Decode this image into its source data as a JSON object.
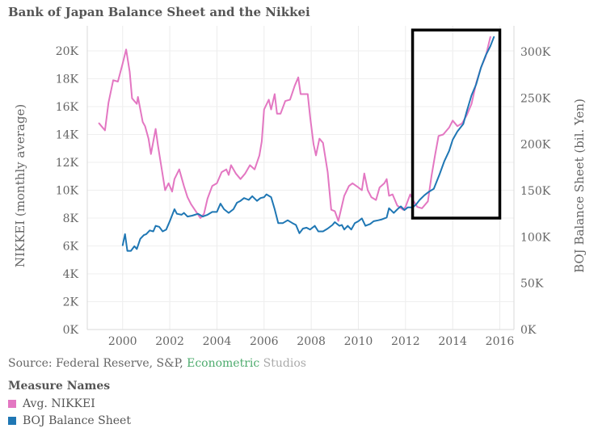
{
  "title": "Bank of Japan Balance Sheet and the Nikkei",
  "source": {
    "prefix": "Source: Federal Reserve, S&P, ",
    "part_green": "Econometric",
    "part_grey": " Studios"
  },
  "legend": {
    "title": "Measure Names",
    "items": [
      {
        "label": "Avg. NIKKEI",
        "color": "#e377c2"
      },
      {
        "label": "BOJ Balance Sheet",
        "color": "#1f77b4"
      }
    ]
  },
  "chart_data": {
    "type": "line",
    "title": "Bank of Japan Balance Sheet and the Nikkei",
    "ylabel_left": "NIKKEI (monthly average)",
    "ylabel_right": "BOJ Balance Sheet (bil. Yen)",
    "x_ticks": [
      "2000",
      "2002",
      "2004",
      "2006",
      "2008",
      "2010",
      "2012",
      "2014",
      "2016"
    ],
    "y_left_ticks": [
      {
        "v": 0,
        "label": "0K"
      },
      {
        "v": 2000,
        "label": "2K"
      },
      {
        "v": 4000,
        "label": "4K"
      },
      {
        "v": 6000,
        "label": "6K"
      },
      {
        "v": 8000,
        "label": "8K"
      },
      {
        "v": 10000,
        "label": "10K"
      },
      {
        "v": 12000,
        "label": "12K"
      },
      {
        "v": 14000,
        "label": "14K"
      },
      {
        "v": 16000,
        "label": "16K"
      },
      {
        "v": 18000,
        "label": "18K"
      },
      {
        "v": 20000,
        "label": "20K"
      }
    ],
    "y_right_ticks": [
      {
        "v": 0,
        "label": "0K"
      },
      {
        "v": 50000,
        "label": "50K"
      },
      {
        "v": 100000,
        "label": "100K"
      },
      {
        "v": 150000,
        "label": "150K"
      },
      {
        "v": 200000,
        "label": "200K"
      },
      {
        "v": 250000,
        "label": "250K"
      },
      {
        "v": 300000,
        "label": "300K"
      }
    ],
    "xlim": [
      1998.5,
      2016.6
    ],
    "ylim_left": [
      0,
      21800
    ],
    "ylim_right": [
      0,
      328000
    ],
    "highlight_box": {
      "x": [
        2012.3,
        2016.0
      ],
      "y_left": [
        8000,
        21500
      ]
    },
    "series": [
      {
        "name": "Avg. NIKKEI",
        "axis": "left",
        "color": "#e377c2",
        "points": [
          [
            1999.0,
            14800
          ],
          [
            1999.25,
            14300
          ],
          [
            1999.4,
            16300
          ],
          [
            1999.6,
            17900
          ],
          [
            1999.8,
            17800
          ],
          [
            2000.0,
            19100
          ],
          [
            2000.15,
            20100
          ],
          [
            2000.3,
            18500
          ],
          [
            2000.4,
            16600
          ],
          [
            2000.6,
            16200
          ],
          [
            2000.65,
            16700
          ],
          [
            2000.85,
            14900
          ],
          [
            2000.95,
            14600
          ],
          [
            2001.1,
            13700
          ],
          [
            2001.2,
            12600
          ],
          [
            2001.4,
            14400
          ],
          [
            2001.5,
            13200
          ],
          [
            2001.65,
            11600
          ],
          [
            2001.8,
            10000
          ],
          [
            2001.95,
            10500
          ],
          [
            2002.1,
            9900
          ],
          [
            2002.2,
            10800
          ],
          [
            2002.4,
            11500
          ],
          [
            2002.6,
            10300
          ],
          [
            2002.75,
            9500
          ],
          [
            2002.9,
            9000
          ],
          [
            2003.1,
            8500
          ],
          [
            2003.3,
            8000
          ],
          [
            2003.45,
            8300
          ],
          [
            2003.6,
            9400
          ],
          [
            2003.8,
            10300
          ],
          [
            2004.0,
            10500
          ],
          [
            2004.2,
            11300
          ],
          [
            2004.4,
            11500
          ],
          [
            2004.5,
            11100
          ],
          [
            2004.6,
            11800
          ],
          [
            2004.8,
            11200
          ],
          [
            2005.0,
            10800
          ],
          [
            2005.2,
            11200
          ],
          [
            2005.4,
            11800
          ],
          [
            2005.6,
            11500
          ],
          [
            2005.8,
            12500
          ],
          [
            2005.9,
            13500
          ],
          [
            2006.0,
            15800
          ],
          [
            2006.2,
            16500
          ],
          [
            2006.3,
            15800
          ],
          [
            2006.45,
            16900
          ],
          [
            2006.55,
            15500
          ],
          [
            2006.7,
            15500
          ],
          [
            2006.9,
            16400
          ],
          [
            2007.1,
            16500
          ],
          [
            2007.3,
            17500
          ],
          [
            2007.45,
            18100
          ],
          [
            2007.55,
            16900
          ],
          [
            2007.85,
            16900
          ],
          [
            2007.95,
            15300
          ],
          [
            2008.1,
            13300
          ],
          [
            2008.2,
            12500
          ],
          [
            2008.35,
            13700
          ],
          [
            2008.5,
            13400
          ],
          [
            2008.7,
            11300
          ],
          [
            2008.85,
            8600
          ],
          [
            2009.0,
            8500
          ],
          [
            2009.15,
            7800
          ],
          [
            2009.4,
            9600
          ],
          [
            2009.6,
            10300
          ],
          [
            2009.75,
            10500
          ],
          [
            2010.0,
            10200
          ],
          [
            2010.15,
            10000
          ],
          [
            2010.25,
            11200
          ],
          [
            2010.4,
            10000
          ],
          [
            2010.55,
            9500
          ],
          [
            2010.75,
            9300
          ],
          [
            2010.9,
            10200
          ],
          [
            2011.1,
            10500
          ],
          [
            2011.2,
            10800
          ],
          [
            2011.3,
            9600
          ],
          [
            2011.45,
            9700
          ],
          [
            2011.65,
            8900
          ],
          [
            2011.9,
            8600
          ],
          [
            2012.0,
            8800
          ],
          [
            2012.2,
            9700
          ],
          [
            2012.35,
            9200
          ],
          [
            2012.5,
            8800
          ],
          [
            2012.7,
            8700
          ],
          [
            2012.95,
            9200
          ],
          [
            2013.1,
            11000
          ],
          [
            2013.25,
            12500
          ],
          [
            2013.4,
            13900
          ],
          [
            2013.6,
            14000
          ],
          [
            2013.85,
            14500
          ],
          [
            2014.0,
            15000
          ],
          [
            2014.2,
            14600
          ],
          [
            2014.4,
            14800
          ],
          [
            2014.6,
            15400
          ],
          [
            2014.8,
            16200
          ],
          [
            2015.0,
            17700
          ],
          [
            2015.2,
            18800
          ],
          [
            2015.4,
            19600
          ],
          [
            2015.6,
            21000
          ]
        ]
      },
      {
        "name": "BOJ Balance Sheet",
        "axis": "right",
        "color": "#1f77b4",
        "points": [
          [
            2000.0,
            91000
          ],
          [
            2000.1,
            103000
          ],
          [
            2000.2,
            85000
          ],
          [
            2000.35,
            85000
          ],
          [
            2000.5,
            90000
          ],
          [
            2000.6,
            87000
          ],
          [
            2000.75,
            98000
          ],
          [
            2000.9,
            102000
          ],
          [
            2001.0,
            103000
          ],
          [
            2001.15,
            107000
          ],
          [
            2001.3,
            106000
          ],
          [
            2001.4,
            112000
          ],
          [
            2001.55,
            111000
          ],
          [
            2001.7,
            106000
          ],
          [
            2001.85,
            108000
          ],
          [
            2002.0,
            117000
          ],
          [
            2002.2,
            130000
          ],
          [
            2002.3,
            125000
          ],
          [
            2002.5,
            124000
          ],
          [
            2002.6,
            126000
          ],
          [
            2002.75,
            122000
          ],
          [
            2002.95,
            123000
          ],
          [
            2003.2,
            125000
          ],
          [
            2003.4,
            122000
          ],
          [
            2003.6,
            124000
          ],
          [
            2003.8,
            127000
          ],
          [
            2004.0,
            127000
          ],
          [
            2004.15,
            136000
          ],
          [
            2004.3,
            130000
          ],
          [
            2004.5,
            126000
          ],
          [
            2004.7,
            130000
          ],
          [
            2004.85,
            137000
          ],
          [
            2005.0,
            139000
          ],
          [
            2005.15,
            142000
          ],
          [
            2005.35,
            140000
          ],
          [
            2005.5,
            144000
          ],
          [
            2005.7,
            139000
          ],
          [
            2005.85,
            142000
          ],
          [
            2006.0,
            143000
          ],
          [
            2006.1,
            146000
          ],
          [
            2006.3,
            143000
          ],
          [
            2006.45,
            130000
          ],
          [
            2006.6,
            115000
          ],
          [
            2006.8,
            115000
          ],
          [
            2007.0,
            118000
          ],
          [
            2007.2,
            115000
          ],
          [
            2007.35,
            113000
          ],
          [
            2007.5,
            104000
          ],
          [
            2007.65,
            109000
          ],
          [
            2007.8,
            110000
          ],
          [
            2007.95,
            108000
          ],
          [
            2008.15,
            112000
          ],
          [
            2008.3,
            106000
          ],
          [
            2008.5,
            106000
          ],
          [
            2008.7,
            109000
          ],
          [
            2008.9,
            113000
          ],
          [
            2009.0,
            116000
          ],
          [
            2009.2,
            112000
          ],
          [
            2009.3,
            113000
          ],
          [
            2009.4,
            108000
          ],
          [
            2009.55,
            112000
          ],
          [
            2009.7,
            108000
          ],
          [
            2009.85,
            115000
          ],
          [
            2010.0,
            117000
          ],
          [
            2010.15,
            120000
          ],
          [
            2010.3,
            112000
          ],
          [
            2010.5,
            114000
          ],
          [
            2010.65,
            117000
          ],
          [
            2010.85,
            118000
          ],
          [
            2011.0,
            119000
          ],
          [
            2011.2,
            121000
          ],
          [
            2011.3,
            131000
          ],
          [
            2011.5,
            126000
          ],
          [
            2011.7,
            131000
          ],
          [
            2011.8,
            133000
          ],
          [
            2011.95,
            129000
          ],
          [
            2012.1,
            132000
          ],
          [
            2012.3,
            132000
          ],
          [
            2012.45,
            135000
          ],
          [
            2012.6,
            140000
          ],
          [
            2012.8,
            145000
          ],
          [
            2013.0,
            149000
          ],
          [
            2013.2,
            152000
          ],
          [
            2013.45,
            168000
          ],
          [
            2013.65,
            182000
          ],
          [
            2013.85,
            193000
          ],
          [
            2014.0,
            205000
          ],
          [
            2014.2,
            214000
          ],
          [
            2014.45,
            222000
          ],
          [
            2014.6,
            236000
          ],
          [
            2014.8,
            253000
          ],
          [
            2015.0,
            265000
          ],
          [
            2015.2,
            283000
          ],
          [
            2015.4,
            296000
          ],
          [
            2015.6,
            306000
          ],
          [
            2015.75,
            316000
          ]
        ]
      }
    ]
  }
}
